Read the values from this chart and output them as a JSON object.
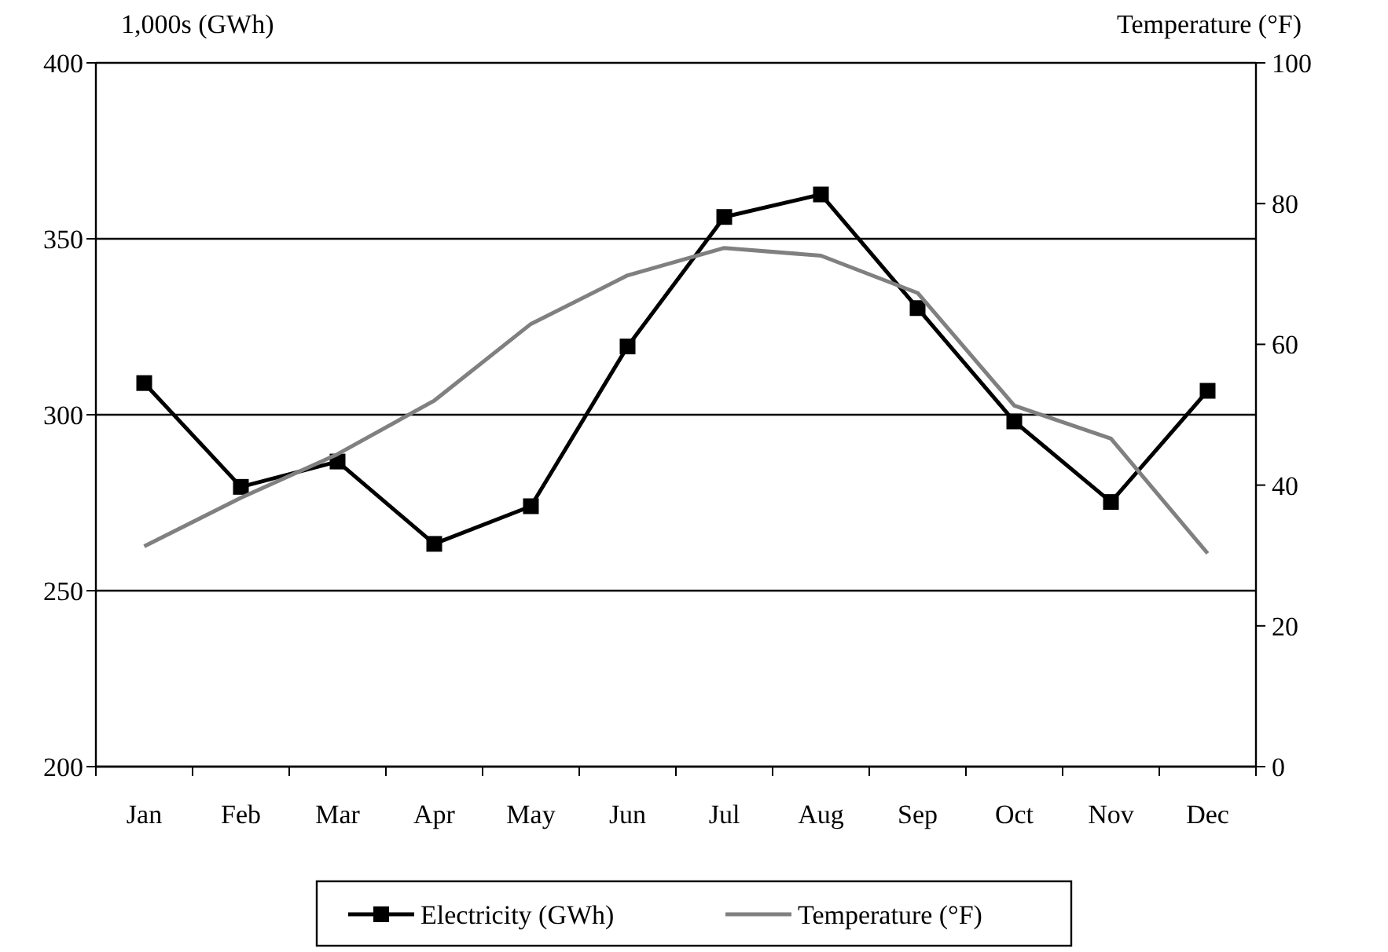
{
  "chart_data": {
    "type": "line",
    "categories": [
      "Jan",
      "Feb",
      "Mar",
      "Apr",
      "May",
      "Jun",
      "Jul",
      "Aug",
      "Sep",
      "Oct",
      "Nov",
      "Dec"
    ],
    "series": [
      {
        "name": "Electricity (GWh)",
        "color": "#000000",
        "marker": "square",
        "values": [
          309,
          279.5,
          286.7,
          263.3,
          274,
          319.4,
          356.2,
          362.6,
          330.3,
          298.1,
          275.2,
          306.8
        ]
      },
      {
        "name": "Temperature (°F)",
        "color": "#808080",
        "axis": "y2",
        "marker": "none",
        "values": [
          31.3,
          38.2,
          44.4,
          52,
          62.9,
          69.8,
          73.7,
          72.6,
          67.3,
          51.3,
          46.6,
          30.3
        ]
      }
    ],
    "ylabel": "1,000s (GWh)",
    "y2label": "Temperature (°F)",
    "ylim": [
      200,
      400
    ],
    "yticks": [
      200,
      250,
      300,
      350,
      400
    ],
    "y2lim": [
      0,
      100
    ],
    "y2ticks": [
      0,
      20,
      40,
      60,
      80,
      100
    ],
    "grid": "y",
    "legend": "bottom"
  }
}
